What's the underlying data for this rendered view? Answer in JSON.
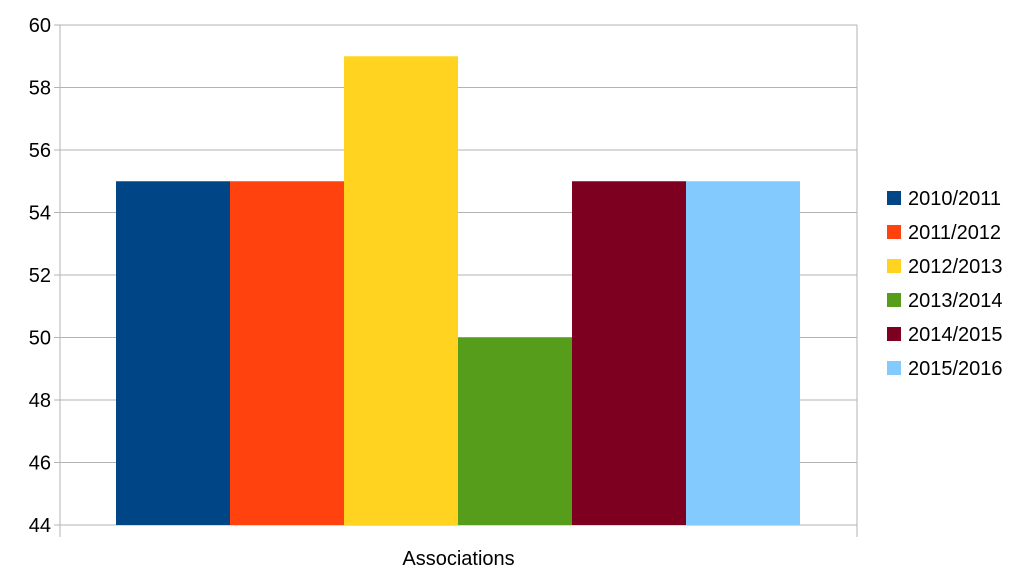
{
  "chart_data": {
    "type": "bar",
    "title": "",
    "xlabel": "",
    "ylabel": "",
    "categories": [
      "Associations"
    ],
    "series": [
      {
        "name": "2010/2011",
        "values": [
          55
        ],
        "color": "#004586"
      },
      {
        "name": "2011/2012",
        "values": [
          55
        ],
        "color": "#ff420e"
      },
      {
        "name": "2012/2013",
        "values": [
          59
        ],
        "color": "#ffd320"
      },
      {
        "name": "2013/2014",
        "values": [
          50
        ],
        "color": "#579d1c"
      },
      {
        "name": "2014/2015",
        "values": [
          55
        ],
        "color": "#7e0021"
      },
      {
        "name": "2015/2016",
        "values": [
          55
        ],
        "color": "#83caff"
      }
    ],
    "ylim": [
      44,
      60
    ],
    "yticks": [
      44,
      46,
      48,
      50,
      52,
      54,
      56,
      58,
      60
    ],
    "grid": true,
    "legend_position": "right"
  }
}
